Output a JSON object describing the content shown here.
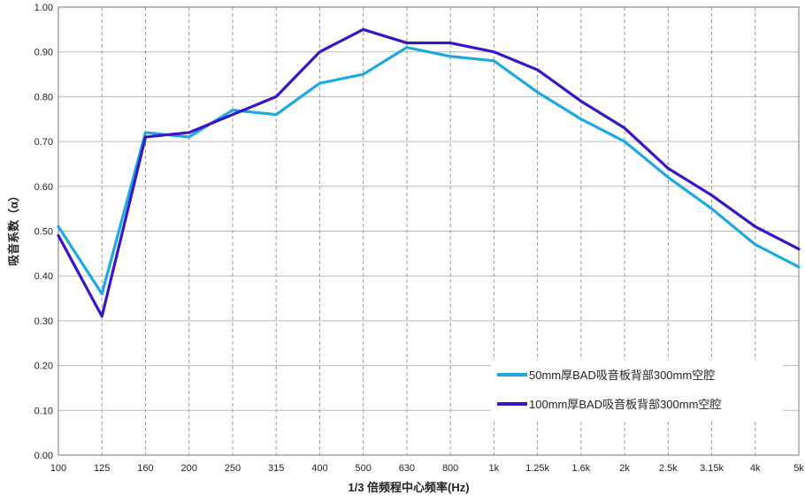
{
  "chart_data": {
    "type": "line",
    "title": "",
    "xlabel": "1/3 倍频程中心频率(Hz)",
    "ylabel": "吸音系数（α）",
    "categories": [
      "100",
      "125",
      "160",
      "200",
      "250",
      "315",
      "400",
      "500",
      "630",
      "800",
      "1k",
      "1.25k",
      "1.6k",
      "2k",
      "2.5k",
      "3.15k",
      "4k",
      "5k"
    ],
    "ylim": [
      0,
      1.0
    ],
    "yticks": [
      "0.00",
      "0.10",
      "0.20",
      "0.30",
      "0.40",
      "0.50",
      "0.60",
      "0.70",
      "0.80",
      "0.90",
      "1.00"
    ],
    "grid": "vertical dashed + horizontal solid",
    "legend_position": "bottom-right",
    "series": [
      {
        "name": "50mm厚BAD吸音板背部300mm空腔",
        "color": "#1ea8e0",
        "values": [
          0.51,
          0.36,
          0.72,
          0.71,
          0.77,
          0.76,
          0.83,
          0.85,
          0.91,
          0.89,
          0.88,
          0.81,
          0.75,
          0.7,
          0.62,
          0.55,
          0.47,
          0.42
        ]
      },
      {
        "name": "100mm厚BAD吸音板背部300mm空腔",
        "color": "#3a14c8",
        "values": [
          0.49,
          0.31,
          0.71,
          0.72,
          0.76,
          0.8,
          0.9,
          0.95,
          0.92,
          0.92,
          0.9,
          0.86,
          0.79,
          0.73,
          0.64,
          0.58,
          0.51,
          0.46
        ]
      }
    ]
  }
}
